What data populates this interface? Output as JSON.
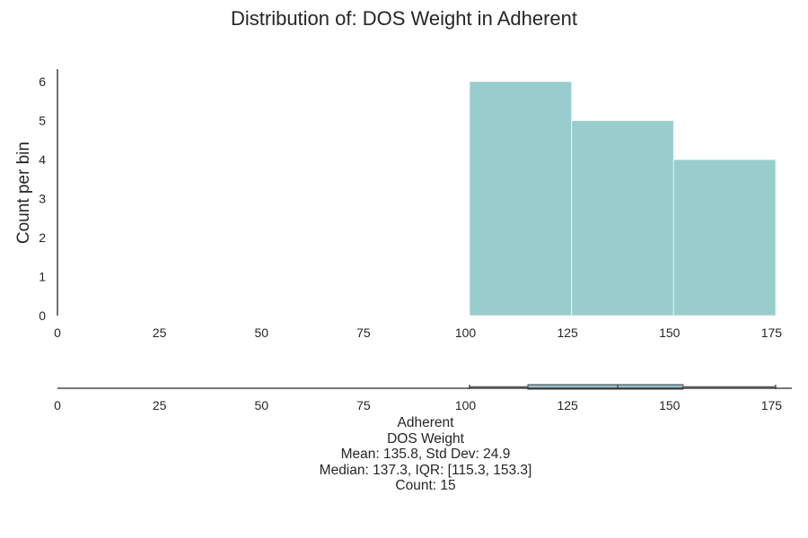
{
  "title": "Distribution of: DOS Weight in Adherent",
  "chart_data": {
    "type": "bar",
    "histogram": {
      "bins": [
        {
          "start": 101,
          "end": 126,
          "count": 6
        },
        {
          "start": 126,
          "end": 151,
          "count": 5
        },
        {
          "start": 151,
          "end": 176,
          "count": 4
        }
      ],
      "color": "#99cdcd"
    },
    "ylabel": "Count per bin",
    "xlabel": "",
    "xlim": [
      0,
      180
    ],
    "ylim": [
      0,
      6.3
    ],
    "xticks": [
      0,
      25,
      50,
      75,
      100,
      125,
      150,
      175
    ],
    "yticks": [
      0,
      1,
      2,
      3,
      4,
      5,
      6
    ],
    "grid": false,
    "boxplot": {
      "min": 101,
      "q1": 115.3,
      "median": 137.3,
      "q3": 153.3,
      "max": 176,
      "xticks": [
        0,
        25,
        50,
        75,
        100,
        125,
        150,
        175
      ],
      "color": "#91bfd0"
    }
  },
  "summary": {
    "group": "Adherent",
    "variable": "DOS Weight",
    "mean_std": "Mean: 135.8, Std Dev: 24.9",
    "median_iqr": "Median: 137.3, IQR: [115.3, 153.3]",
    "count": "Count: 15"
  }
}
